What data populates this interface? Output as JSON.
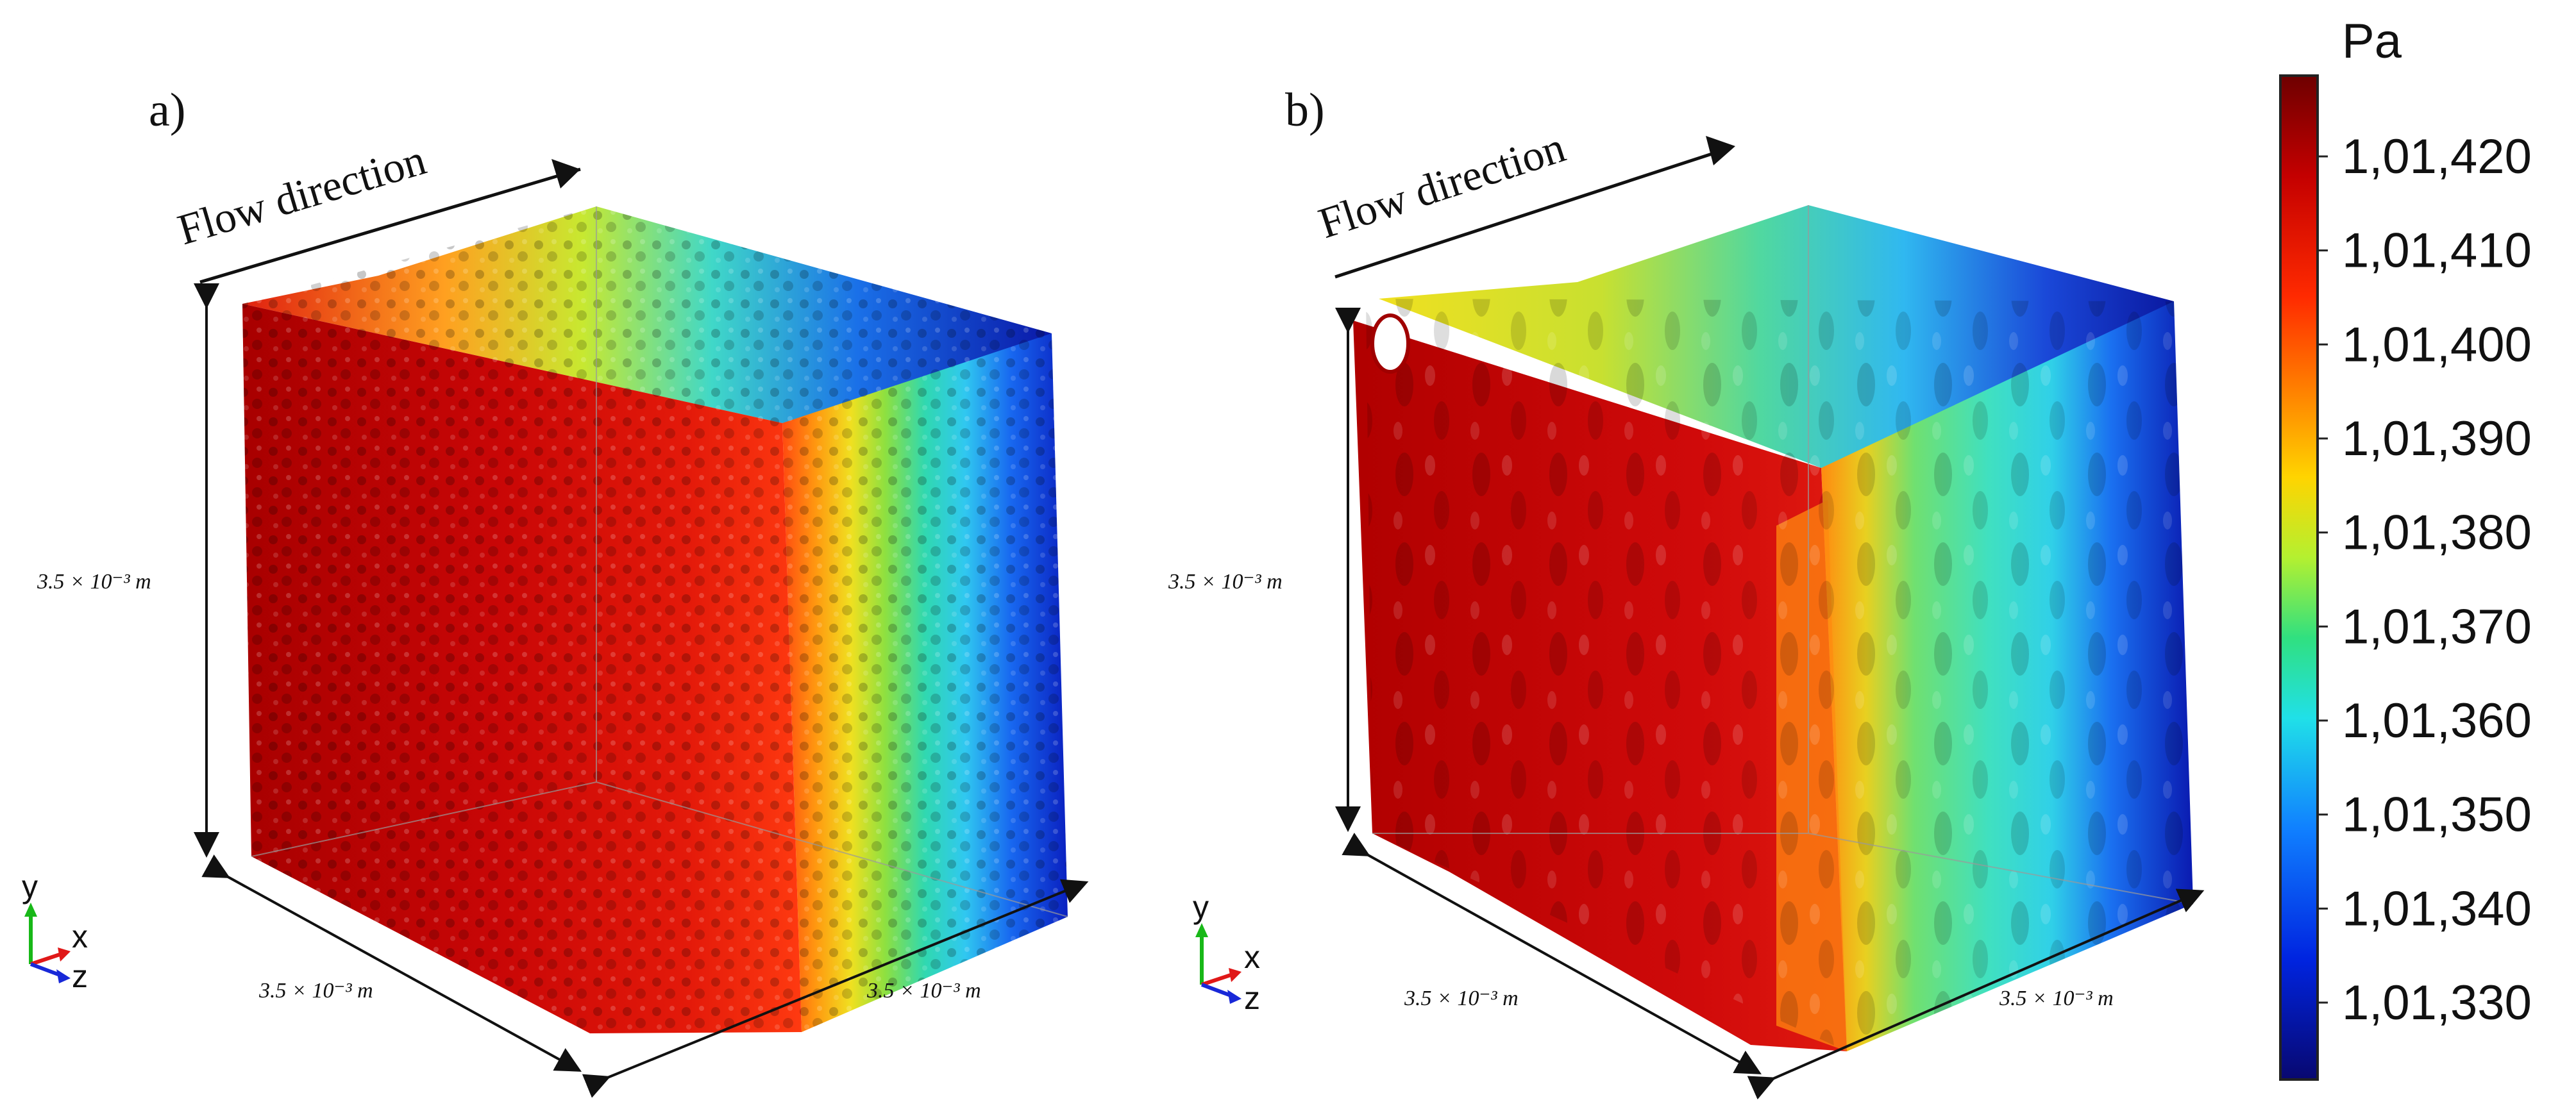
{
  "panels": [
    {
      "label": "a)",
      "flow_label": "Flow direction",
      "dim_height": "3.5 × 10⁻³ m",
      "dim_depth": "3.5 × 10⁻³ m",
      "dim_width": "3.5 × 10⁻³ m",
      "axes": {
        "x": "x",
        "y": "y",
        "z": "z"
      }
    },
    {
      "label": "b)",
      "flow_label": "Flow direction",
      "dim_height": "3.5 × 10⁻³ m",
      "dim_depth": "3.5 × 10⁻³ m",
      "dim_width": "3.5 × 10⁻³ m",
      "axes": {
        "x": "x",
        "y": "y",
        "z": "z"
      }
    }
  ],
  "colorbar": {
    "unit": "Pa",
    "ticks": [
      "1,01,420",
      "1,01,410",
      "1,01,400",
      "1,01,390",
      "1,01,380",
      "1,01,370",
      "1,01,360",
      "1,01,350",
      "1,01,340",
      "1,01,330"
    ],
    "colors": [
      "#7a0000",
      "#c40000",
      "#ff2000",
      "#ff8000",
      "#ffd000",
      "#c0f020",
      "#40e070",
      "#20e0e0",
      "#1080ff",
      "#0020e0",
      "#0a0a7a"
    ]
  }
}
